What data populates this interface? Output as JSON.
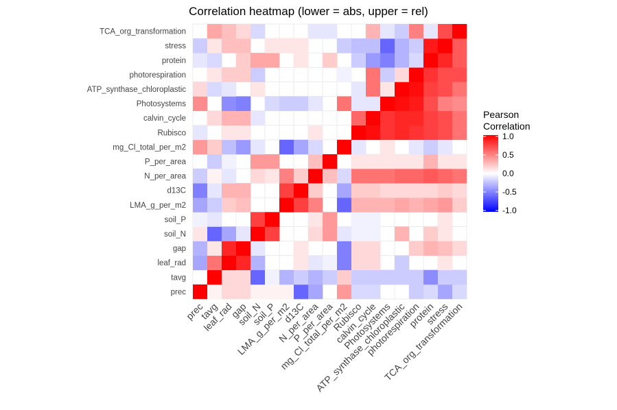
{
  "chart_data": {
    "type": "heatmap",
    "title": "Correlation heatmap (lower = abs, upper = rel)",
    "variables": [
      "prec",
      "tavg",
      "leaf_rad",
      "gap",
      "soil_N",
      "soil_P",
      "LMA_g_per_m2",
      "d13C",
      "N_per_area",
      "P_per_area",
      "mg_Cl_total_per_m2",
      "Rubisco",
      "calvin_cycle",
      "Photosystems",
      "ATP_synthase_chloroplastic",
      "photorespiration",
      "protein",
      "stress",
      "TCA_org_transformation"
    ],
    "x_labels": [
      "prec",
      "tavg",
      "leaf_rad",
      "gap",
      "soil_N",
      "soil_P",
      "LMA_g_per_m2",
      "d13C",
      "N_per_area",
      "P_per_area",
      "mg_Cl_total_per_m2",
      "Rubisco",
      "calvin_cycle",
      "Photosystems",
      "ATP_synthase_chloroplastic",
      "photorespiration",
      "protein",
      "stress",
      "TCA_org_transformation"
    ],
    "y_labels_bottom_to_top": [
      "prec",
      "tavg",
      "leaf_rad",
      "gap",
      "soil_N",
      "soil_P",
      "LMA_g_per_m2",
      "d13C",
      "N_per_area",
      "P_per_area",
      "mg_Cl_total_per_m2",
      "Rubisco",
      "calvin_cycle",
      "Photosystems",
      "ATP_synthase_chloroplastic",
      "photorespiration",
      "protein",
      "stress",
      "TCA_org_transformation"
    ],
    "value_range": [
      -1,
      1
    ],
    "legend": {
      "title": "Pearson Correlation",
      "title_lines": [
        "Pearson",
        "Correlation"
      ],
      "ticks": [
        "1.0",
        "0.5",
        "0.0",
        "-0.5",
        "-1.0"
      ],
      "tick_values": [
        1.0,
        0.5,
        0.0,
        -0.5,
        -1.0
      ],
      "placement": "right"
    },
    "colors": {
      "low": "#0000ff",
      "mid": "#ffffff",
      "high": "#ff0000"
    },
    "grid": true,
    "lower_triangle": {
      "description_row_first_var_is_row": true,
      "rows": [
        [],
        [
          0
        ],
        [
          -0.35,
          0.55
        ],
        [
          -0.3,
          0.1,
          0.85
        ],
        [
          0.1,
          -0.6,
          -0.35,
          -0.1
        ],
        [
          -0.05,
          -0.1,
          0,
          0,
          0.75
        ],
        [
          -0.35,
          -0.2,
          0.2,
          0.25,
          0,
          0
        ],
        [
          -0.5,
          -0.1,
          0.3,
          0.3,
          0,
          0,
          0.75
        ],
        [
          -0.2,
          0.05,
          -0.1,
          0,
          0.15,
          0.1,
          0.5,
          0.2
        ],
        [
          0,
          -0.2,
          -0.05,
          0,
          0.4,
          0.4,
          0,
          0,
          0.25
        ],
        [
          0.4,
          0.2,
          -0.25,
          -0.4,
          -0.1,
          0,
          -0.6,
          -0.35,
          -0.15,
          0
        ],
        [
          -0.1,
          0,
          0.1,
          0.1,
          0,
          0,
          0,
          0,
          0.1,
          0,
          0
        ],
        [
          0,
          0.15,
          0.3,
          0.3,
          -0.1,
          0,
          0,
          0,
          0,
          0,
          0,
          0.6
        ],
        [
          0.45,
          0,
          -0.45,
          -0.5,
          0,
          -0.15,
          -0.2,
          -0.2,
          -0.1,
          0,
          0.55,
          -0.1,
          -0.1
        ],
        [
          0.15,
          -0.15,
          -0.1,
          0,
          0.1,
          0,
          0,
          0,
          0,
          0,
          0,
          -0.1,
          0.55,
          0.1
        ],
        [
          0,
          0.1,
          0.2,
          0.2,
          -0.2,
          0,
          0,
          0,
          0,
          0,
          -0.05,
          0,
          0.55,
          -0.2,
          0.15
        ],
        [
          -0.1,
          -0.15,
          0,
          0.2,
          0.35,
          0.35,
          0,
          0.1,
          0,
          0.2,
          0,
          -0.2,
          -0.4,
          -0.5,
          -0.3,
          -0.15
        ],
        [
          -0.2,
          0.1,
          0.25,
          0.25,
          0,
          0.1,
          0.1,
          0.1,
          0,
          0,
          -0.2,
          -0.25,
          -0.25,
          -0.6,
          -0.3,
          -0.2,
          0.9
        ],
        [
          0,
          0.35,
          0.25,
          0.15,
          -0.15,
          0,
          0,
          0,
          -0.1,
          -0.1,
          0,
          0,
          0.3,
          -0.1,
          -0.2,
          0.5,
          -0.1,
          0.7
        ]
      ]
    },
    "upper_triangle": {
      "description_col_first_var_is_column": true,
      "cols": [
        [],
        [
          0.05
        ],
        [
          0.15,
          0.15
        ],
        [
          0.15,
          0.15,
          0.85
        ],
        [
          0.05,
          -0.6,
          -0.3,
          -0.1
        ],
        [
          0.05,
          -0.05,
          0,
          0,
          0.75
        ],
        [
          0.05,
          -0.3,
          0,
          0,
          0,
          0
        ],
        [
          -0.6,
          -0.2,
          0.1,
          0.1,
          0,
          0,
          0.75
        ],
        [
          -0.35,
          -0.3,
          -0.1,
          0,
          0.15,
          0.1,
          0.5,
          0.2
        ],
        [
          0,
          -0.2,
          -0.05,
          0,
          0.4,
          0.4,
          0,
          0,
          0.25
        ],
        [
          0.4,
          0.2,
          -0.5,
          -0.5,
          -0.1,
          0,
          -0.6,
          -0.35,
          -0.15,
          0
        ],
        [
          -0.15,
          -0.2,
          0.15,
          0.15,
          -0.05,
          -0.05,
          0.3,
          0.2,
          0.55,
          0.1,
          -0.1
        ],
        [
          -0.15,
          -0.2,
          0.15,
          0.15,
          -0.05,
          -0.05,
          0.3,
          0.2,
          0.55,
          0.1,
          0,
          0.95
        ],
        [
          0,
          -0.2,
          0,
          0,
          0,
          0,
          0.3,
          0.15,
          0.55,
          0.1,
          0.1,
          0.8,
          0.8
        ],
        [
          0,
          -0.2,
          -0.2,
          0,
          0.3,
          0,
          0.35,
          0.15,
          0.6,
          0.1,
          0,
          0.85,
          0.85,
          0.95
        ],
        [
          -0.2,
          -0.2,
          0,
          0.2,
          0,
          0,
          0.3,
          0.15,
          0.6,
          0.1,
          -0.1,
          0.8,
          0.85,
          0.9,
          0.95
        ],
        [
          -0.15,
          -0.45,
          0,
          0.3,
          0.2,
          0,
          0.35,
          0.15,
          0.65,
          0.3,
          -0.2,
          0.75,
          0.75,
          0.7,
          0.75,
          0.8
        ],
        [
          -0.35,
          -0.2,
          0.1,
          0.25,
          0.1,
          0.1,
          0.4,
          0.2,
          0.6,
          0.1,
          -0.1,
          0.7,
          0.7,
          0.5,
          0.7,
          0.7,
          0.85
        ],
        [
          -0.15,
          -0.2,
          0,
          0.15,
          0,
          0,
          0.2,
          0.15,
          0.55,
          0.1,
          0,
          0.55,
          0.55,
          0.45,
          0.55,
          0.7,
          0.65,
          0.65
        ]
      ]
    }
  }
}
